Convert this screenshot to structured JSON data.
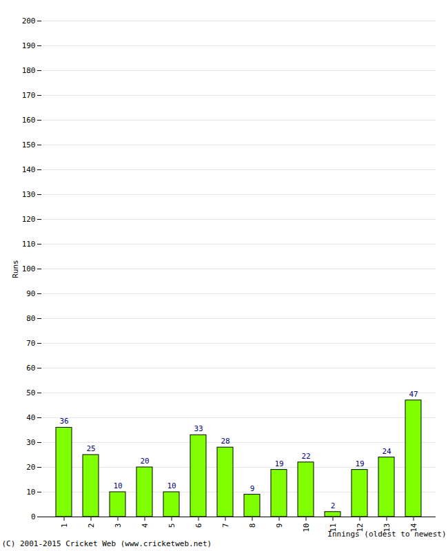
{
  "chart_data": {
    "type": "bar",
    "categories": [
      "1",
      "2",
      "3",
      "4",
      "5",
      "6",
      "7",
      "8",
      "9",
      "10",
      "11",
      "12",
      "13",
      "14"
    ],
    "values": [
      36,
      25,
      10,
      20,
      10,
      33,
      28,
      9,
      19,
      22,
      2,
      19,
      24,
      47
    ],
    "color": "#80ff00",
    "x_label": "Innings (oldest to newest)",
    "y_label": "Runs",
    "caption": "(C) 2001-2015 Cricket Web (www.cricketweb.net)",
    "ylim": [
      0,
      200
    ],
    "yticks": [
      0,
      10,
      20,
      30,
      40,
      50,
      60,
      70,
      80,
      90,
      100,
      110,
      120,
      130,
      140,
      150,
      160,
      170,
      180,
      190,
      200
    ],
    "grid": true,
    "data_labels": true
  }
}
